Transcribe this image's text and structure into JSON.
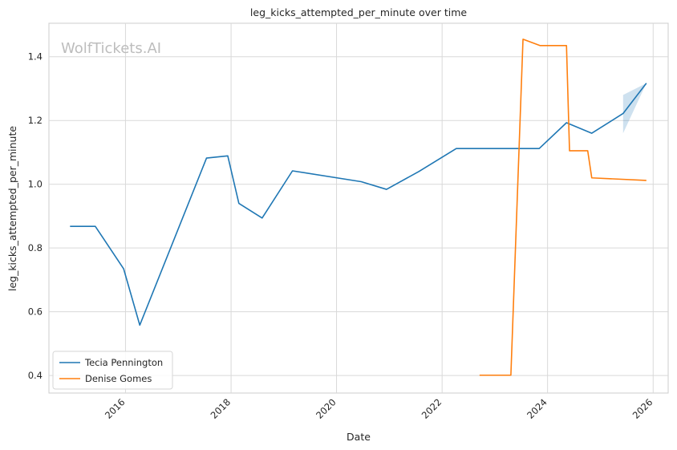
{
  "chart_data": {
    "type": "line",
    "title": "leg_kicks_attempted_per_minute over time",
    "xlabel": "Date",
    "ylabel": "leg_kicks_attempted_per_minute",
    "watermark": "WolfTickets.AI",
    "x_ticks": [
      "2016",
      "2018",
      "2020",
      "2022",
      "2024",
      "2026"
    ],
    "y_ticks": [
      "0.4",
      "0.6",
      "0.8",
      "1.0",
      "1.2",
      "1.4"
    ],
    "xlim": [
      "2014-07-20",
      "2026-04-15"
    ],
    "ylim": [
      0.345,
      1.505
    ],
    "grid": true,
    "legend_position": "lower-left",
    "series": [
      {
        "name": "Tecia Pennington",
        "color": "#1f77b4",
        "points": [
          [
            "2014-12-13",
            0.868
          ],
          [
            "2015-06-06",
            0.868
          ],
          [
            "2015-12-19",
            0.735
          ],
          [
            "2016-04-09",
            0.558
          ],
          [
            "2017-07-15",
            1.082
          ],
          [
            "2017-12-09",
            1.089
          ],
          [
            "2018-02-24",
            0.94
          ],
          [
            "2018-08-04",
            0.894
          ],
          [
            "2019-03-02",
            1.042
          ],
          [
            "2020-06-20",
            1.008
          ],
          [
            "2020-12-12",
            0.984
          ],
          [
            "2021-07-24",
            1.04
          ],
          [
            "2022-04-09",
            1.112
          ],
          [
            "2023-11-04",
            1.112
          ],
          [
            "2024-05-11",
            1.193
          ],
          [
            "2024-11-02",
            1.16
          ],
          [
            "2025-06-07",
            1.222
          ],
          [
            "2025-11-15",
            1.317
          ]
        ],
        "band": {
          "x": [
            "2025-06-07",
            "2025-11-15"
          ],
          "lower": [
            1.16,
            1.317
          ],
          "upper": [
            1.28,
            1.317
          ]
        }
      },
      {
        "name": "Denise Gomes",
        "color": "#ff7f0e",
        "points": [
          [
            "2022-09-17",
            0.401
          ],
          [
            "2023-04-22",
            0.401
          ],
          [
            "2023-07-15",
            1.455
          ],
          [
            "2023-11-11",
            1.435
          ],
          [
            "2024-05-11",
            1.435
          ],
          [
            "2024-06-01",
            1.105
          ],
          [
            "2024-10-05",
            1.105
          ],
          [
            "2024-11-02",
            1.02
          ],
          [
            "2025-11-15",
            1.012
          ]
        ]
      }
    ]
  }
}
